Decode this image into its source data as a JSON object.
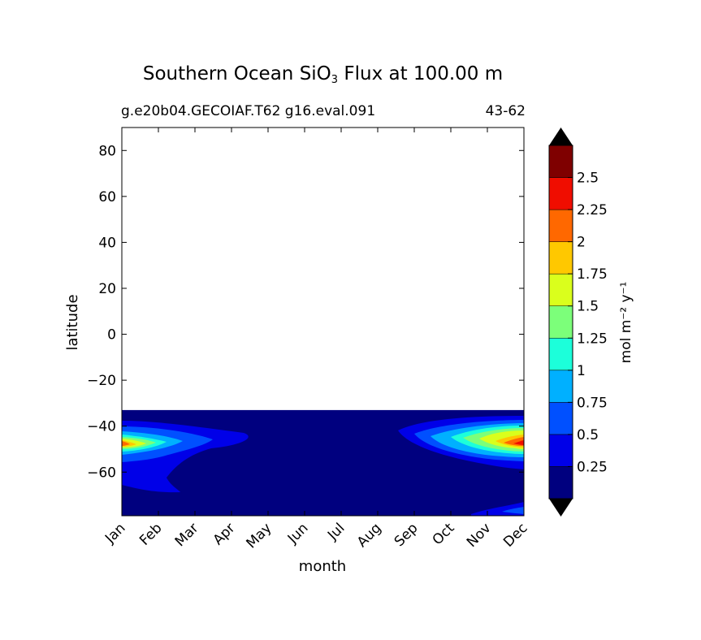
{
  "chart_data": {
    "type": "heatmap",
    "title_main": "Southern Ocean SiO",
    "title_sub": "3",
    "title_rest": " Flux at 100.00 m",
    "subtitle_left": "g.e20b04.GECOIAF.T62 g16.eval.091",
    "subtitle_right": "43-62",
    "xlabel": "month",
    "ylabel": "latitude",
    "x_ticks": [
      "Jan",
      "Feb",
      "Mar",
      "Apr",
      "May",
      "Jun",
      "Jul",
      "Aug",
      "Sep",
      "Oct",
      "Nov",
      "Dec"
    ],
    "y_ticks": [
      80,
      60,
      40,
      20,
      0,
      -20,
      -40,
      -60
    ],
    "y_tick_labels": [
      "80",
      "60",
      "40",
      "20",
      "0",
      "−20",
      "−40",
      "−60"
    ],
    "ylim": [
      -79,
      90
    ],
    "data_lat_range": [
      -79,
      -33
    ],
    "colorbar": {
      "label": "mol m⁻² y⁻¹",
      "levels": [
        0,
        0.25,
        0.5,
        0.75,
        1,
        1.25,
        1.5,
        1.75,
        2,
        2.25,
        2.5,
        2.75
      ],
      "tick_labels": [
        "0.25",
        "0.5",
        "0.75",
        "1",
        "1.25",
        "1.5",
        "1.75",
        "2",
        "2.25",
        "2.5"
      ],
      "colors": [
        "#00007f",
        "#0000e8",
        "#0050ff",
        "#00b0ff",
        "#1cffda",
        "#7cff7a",
        "#daff1c",
        "#ffc800",
        "#ff6800",
        "#f00d00",
        "#7f0000"
      ],
      "extend": "both"
    },
    "features": [
      {
        "desc": "southern summer maximum near 47S",
        "months": [
          "Jan",
          "Feb",
          "Mar",
          "Oct",
          "Nov",
          "Dec"
        ],
        "peak_lat": -47,
        "peak_value": 2.1
      },
      {
        "desc": "background flux below 0.25 over most of the year",
        "months": [
          "Apr",
          "May",
          "Jun",
          "Jul",
          "Aug",
          "Sep"
        ],
        "value": 0.2
      }
    ]
  }
}
